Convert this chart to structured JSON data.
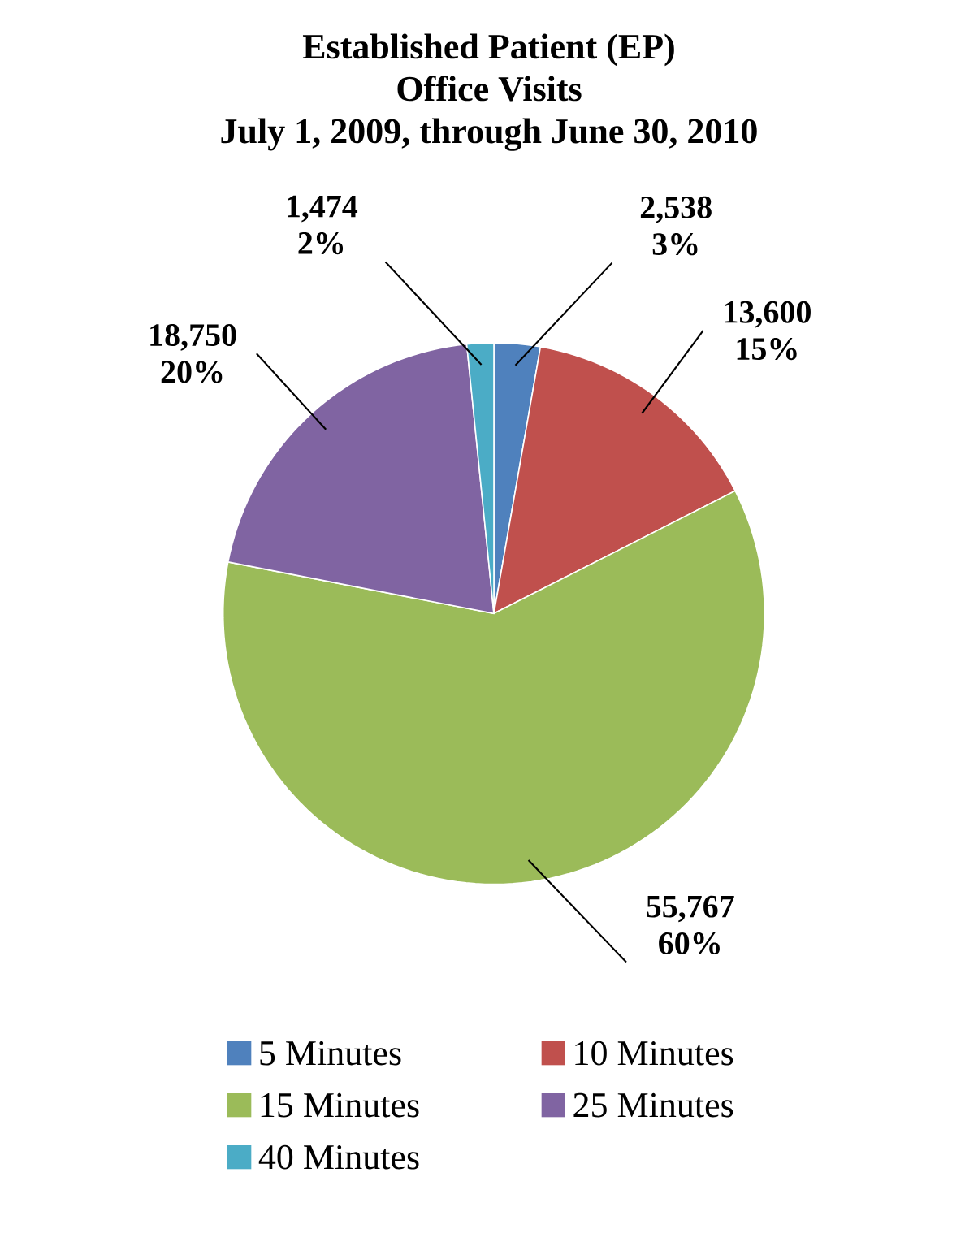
{
  "chart_data": {
    "type": "pie",
    "title": "Established Patient (EP)\nOffice Visits\nJuly 1, 2009, through June 30, 2010",
    "categories": [
      "5 Minutes",
      "10 Minutes",
      "15 Minutes",
      "25 Minutes",
      "40 Minutes"
    ],
    "values": [
      2538,
      13600,
      55767,
      18750,
      1474
    ],
    "value_labels": [
      "2,538\n3%",
      "13,600\n15%",
      "55,767\n60%",
      "18,750\n20%",
      "1,474\n2%"
    ],
    "colors": [
      "#4f81bd",
      "#c0504d",
      "#9bbb59",
      "#8064a2",
      "#4bacc6"
    ],
    "legend": "bottom"
  }
}
